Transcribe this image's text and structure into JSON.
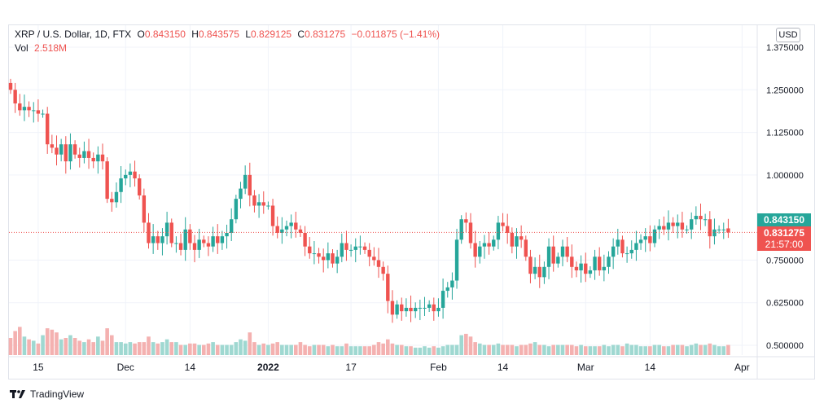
{
  "header": {
    "symbol": "XRP / U.S. Dollar, 1D, FTX",
    "o_label": "O",
    "o_value": "0.843150",
    "h_label": "H",
    "h_value": "0.843575",
    "l_label": "L",
    "l_value": "0.829125",
    "c_label": "C",
    "c_value": "0.831275",
    "change": "−0.011875 (−1.41%)",
    "vol_label": "Vol",
    "vol_value": "2.518M"
  },
  "currency_button": "USD",
  "price_tags": {
    "open": "0.843150",
    "close": "0.831275",
    "countdown": "21:57:00"
  },
  "brand": "TradingView",
  "colors": {
    "up": "#26a69a",
    "down": "#ef5350",
    "vol_up": "#9fd8d1",
    "vol_down": "#f4b1b0",
    "grid": "#f0f3fa",
    "text": "#131722"
  },
  "chart_data": {
    "type": "candlestick",
    "y_ticks": [
      "1.375000",
      "1.250000",
      "1.125000",
      "1.000000",
      "0.750000",
      "0.625000",
      "0.500000"
    ],
    "x_ticks": [
      "15",
      "Dec",
      "14",
      "2022",
      "17",
      "Feb",
      "14",
      "Mar",
      "14",
      "Apr"
    ],
    "ylim": [
      0.475,
      1.42
    ],
    "last_close": 0.831275,
    "candles": [
      [
        1.27,
        1.25
      ],
      [
        1.25,
        1.21
      ],
      [
        1.21,
        1.19
      ],
      [
        1.19,
        1.2
      ],
      [
        1.2,
        1.19
      ],
      [
        1.19,
        1.19
      ],
      [
        1.19,
        1.18
      ],
      [
        1.18,
        1.18
      ],
      [
        1.18,
        1.09
      ],
      [
        1.09,
        1.08
      ],
      [
        1.08,
        1.06
      ],
      [
        1.06,
        1.09
      ],
      [
        1.09,
        1.04
      ],
      [
        1.04,
        1.09
      ],
      [
        1.09,
        1.06
      ],
      [
        1.06,
        1.05
      ],
      [
        1.05,
        1.07
      ],
      [
        1.07,
        1.05
      ],
      [
        1.05,
        1.04
      ],
      [
        1.04,
        1.06
      ],
      [
        1.06,
        1.04
      ],
      [
        1.04,
        0.93
      ],
      [
        0.93,
        0.92
      ],
      [
        0.92,
        0.95
      ],
      [
        0.95,
        0.99
      ],
      [
        0.99,
        1.0
      ],
      [
        1.0,
        1.01
      ],
      [
        1.01,
        0.99
      ],
      [
        0.99,
        0.94
      ],
      [
        0.94,
        0.86
      ],
      [
        0.86,
        0.8
      ],
      [
        0.8,
        0.82
      ],
      [
        0.82,
        0.8
      ],
      [
        0.8,
        0.82
      ],
      [
        0.82,
        0.86
      ],
      [
        0.86,
        0.8
      ],
      [
        0.8,
        0.8
      ],
      [
        0.8,
        0.78
      ],
      [
        0.78,
        0.84
      ],
      [
        0.84,
        0.8
      ],
      [
        0.8,
        0.78
      ],
      [
        0.78,
        0.81
      ],
      [
        0.81,
        0.8
      ],
      [
        0.8,
        0.79
      ],
      [
        0.79,
        0.82
      ],
      [
        0.82,
        0.8
      ],
      [
        0.8,
        0.82
      ],
      [
        0.82,
        0.83
      ],
      [
        0.83,
        0.87
      ],
      [
        0.87,
        0.93
      ],
      [
        0.93,
        0.96
      ],
      [
        0.96,
        1.0
      ],
      [
        1.0,
        0.94
      ],
      [
        0.94,
        0.91
      ],
      [
        0.91,
        0.92
      ],
      [
        0.92,
        0.91
      ],
      [
        0.91,
        0.91
      ],
      [
        0.91,
        0.85
      ],
      [
        0.85,
        0.83
      ],
      [
        0.83,
        0.84
      ],
      [
        0.84,
        0.85
      ],
      [
        0.85,
        0.86
      ],
      [
        0.86,
        0.84
      ],
      [
        0.84,
        0.83
      ],
      [
        0.83,
        0.79
      ],
      [
        0.79,
        0.77
      ],
      [
        0.77,
        0.77
      ],
      [
        0.77,
        0.76
      ],
      [
        0.76,
        0.75
      ],
      [
        0.75,
        0.77
      ],
      [
        0.77,
        0.74
      ],
      [
        0.74,
        0.76
      ],
      [
        0.76,
        0.8
      ],
      [
        0.8,
        0.78
      ],
      [
        0.78,
        0.78
      ],
      [
        0.78,
        0.79
      ],
      [
        0.79,
        0.79
      ],
      [
        0.79,
        0.78
      ],
      [
        0.78,
        0.76
      ],
      [
        0.76,
        0.75
      ],
      [
        0.75,
        0.73
      ],
      [
        0.73,
        0.71
      ],
      [
        0.71,
        0.63
      ],
      [
        0.63,
        0.59
      ],
      [
        0.59,
        0.62
      ],
      [
        0.62,
        0.6
      ],
      [
        0.6,
        0.61
      ],
      [
        0.61,
        0.6
      ],
      [
        0.6,
        0.61
      ],
      [
        0.61,
        0.61
      ],
      [
        0.61,
        0.61
      ],
      [
        0.61,
        0.62
      ],
      [
        0.62,
        0.6
      ],
      [
        0.6,
        0.61
      ],
      [
        0.61,
        0.66
      ],
      [
        0.66,
        0.67
      ],
      [
        0.67,
        0.69
      ],
      [
        0.69,
        0.81
      ],
      [
        0.81,
        0.87
      ],
      [
        0.87,
        0.86
      ],
      [
        0.86,
        0.8
      ],
      [
        0.8,
        0.76
      ],
      [
        0.76,
        0.79
      ],
      [
        0.79,
        0.8
      ],
      [
        0.8,
        0.79
      ],
      [
        0.79,
        0.81
      ],
      [
        0.81,
        0.86
      ],
      [
        0.86,
        0.85
      ],
      [
        0.85,
        0.83
      ],
      [
        0.83,
        0.79
      ],
      [
        0.79,
        0.82
      ],
      [
        0.82,
        0.81
      ],
      [
        0.81,
        0.76
      ],
      [
        0.76,
        0.71
      ],
      [
        0.71,
        0.73
      ],
      [
        0.73,
        0.7
      ],
      [
        0.7,
        0.73
      ],
      [
        0.73,
        0.79
      ],
      [
        0.79,
        0.74
      ],
      [
        0.74,
        0.76
      ],
      [
        0.76,
        0.79
      ],
      [
        0.79,
        0.76
      ],
      [
        0.76,
        0.73
      ],
      [
        0.73,
        0.72
      ],
      [
        0.72,
        0.74
      ],
      [
        0.74,
        0.71
      ],
      [
        0.71,
        0.72
      ],
      [
        0.72,
        0.76
      ],
      [
        0.76,
        0.72
      ],
      [
        0.72,
        0.73
      ],
      [
        0.73,
        0.76
      ],
      [
        0.76,
        0.79
      ],
      [
        0.79,
        0.81
      ],
      [
        0.81,
        0.77
      ],
      [
        0.77,
        0.77
      ],
      [
        0.77,
        0.78
      ],
      [
        0.78,
        0.8
      ],
      [
        0.8,
        0.81
      ],
      [
        0.81,
        0.82
      ],
      [
        0.82,
        0.8
      ],
      [
        0.8,
        0.84
      ],
      [
        0.84,
        0.85
      ],
      [
        0.85,
        0.84
      ],
      [
        0.84,
        0.86
      ],
      [
        0.86,
        0.85
      ],
      [
        0.85,
        0.86
      ],
      [
        0.86,
        0.84
      ],
      [
        0.84,
        0.84
      ],
      [
        0.84,
        0.87
      ],
      [
        0.87,
        0.88
      ],
      [
        0.88,
        0.87
      ],
      [
        0.87,
        0.87
      ],
      [
        0.87,
        0.82
      ],
      [
        0.82,
        0.84
      ],
      [
        0.84,
        0.84
      ],
      [
        0.84,
        0.84
      ],
      [
        0.84315,
        0.831275
      ]
    ],
    "volumes": [
      0.1,
      0.15,
      0.18,
      0.11,
      0.09,
      0.08,
      0.06,
      0.12,
      0.17,
      0.16,
      0.14,
      0.09,
      0.1,
      0.12,
      0.1,
      0.08,
      0.07,
      0.09,
      0.07,
      0.11,
      0.08,
      0.17,
      0.12,
      0.07,
      0.07,
      0.06,
      0.07,
      0.06,
      0.07,
      0.07,
      0.11,
      0.07,
      0.06,
      0.07,
      0.09,
      0.07,
      0.07,
      0.05,
      0.05,
      0.06,
      0.06,
      0.05,
      0.05,
      0.06,
      0.07,
      0.05,
      0.05,
      0.05,
      0.05,
      0.07,
      0.09,
      0.08,
      0.14,
      0.07,
      0.05,
      0.06,
      0.05,
      0.06,
      0.07,
      0.05,
      0.05,
      0.05,
      0.05,
      0.07,
      0.05,
      0.04,
      0.05,
      0.05,
      0.05,
      0.04,
      0.05,
      0.04,
      0.04,
      0.06,
      0.04,
      0.04,
      0.04,
      0.04,
      0.04,
      0.05,
      0.07,
      0.06,
      0.09,
      0.06,
      0.05,
      0.05,
      0.04,
      0.04,
      0.03,
      0.03,
      0.04,
      0.03,
      0.04,
      0.03,
      0.04,
      0.05,
      0.05,
      0.05,
      0.12,
      0.13,
      0.11,
      0.07,
      0.06,
      0.05,
      0.05,
      0.05,
      0.06,
      0.05,
      0.05,
      0.05,
      0.04,
      0.05,
      0.05,
      0.06,
      0.07,
      0.05,
      0.05,
      0.04,
      0.05,
      0.05,
      0.05,
      0.05,
      0.05,
      0.04,
      0.05,
      0.04,
      0.04,
      0.04,
      0.04,
      0.05,
      0.04,
      0.05,
      0.05,
      0.04,
      0.06,
      0.05,
      0.05,
      0.04,
      0.04,
      0.04,
      0.05,
      0.05,
      0.04,
      0.04,
      0.05,
      0.05,
      0.05,
      0.04,
      0.05,
      0.06,
      0.05,
      0.05,
      0.06,
      0.05,
      0.04,
      0.04,
      0.05
    ]
  }
}
